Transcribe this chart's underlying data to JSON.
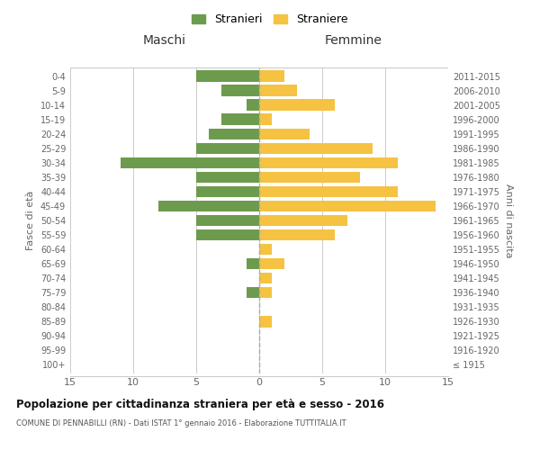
{
  "age_groups": [
    "100+",
    "95-99",
    "90-94",
    "85-89",
    "80-84",
    "75-79",
    "70-74",
    "65-69",
    "60-64",
    "55-59",
    "50-54",
    "45-49",
    "40-44",
    "35-39",
    "30-34",
    "25-29",
    "20-24",
    "15-19",
    "10-14",
    "5-9",
    "0-4"
  ],
  "birth_years": [
    "≤ 1915",
    "1916-1920",
    "1921-1925",
    "1926-1930",
    "1931-1935",
    "1936-1940",
    "1941-1945",
    "1946-1950",
    "1951-1955",
    "1956-1960",
    "1961-1965",
    "1966-1970",
    "1971-1975",
    "1976-1980",
    "1981-1985",
    "1986-1990",
    "1991-1995",
    "1996-2000",
    "2001-2005",
    "2006-2010",
    "2011-2015"
  ],
  "males": [
    0,
    0,
    0,
    0,
    0,
    1,
    0,
    1,
    0,
    5,
    5,
    8,
    5,
    5,
    11,
    5,
    4,
    3,
    1,
    3,
    5
  ],
  "females": [
    0,
    0,
    0,
    1,
    0,
    1,
    1,
    2,
    1,
    6,
    7,
    14,
    11,
    8,
    11,
    9,
    4,
    1,
    6,
    3,
    2
  ],
  "male_color": "#6d9b4e",
  "female_color": "#f5c242",
  "bg_color": "#ffffff",
  "grid_color": "#cccccc",
  "title": "Popolazione per cittadinanza straniera per età e sesso - 2016",
  "subtitle": "COMUNE DI PENNABILLI (RN) - Dati ISTAT 1° gennaio 2016 - Elaborazione TUTTITALIA.IT",
  "xlabel_left": "Maschi",
  "xlabel_right": "Femmine",
  "ylabel_left": "Fasce di età",
  "ylabel_right": "Anni di nascita",
  "xlim": 15,
  "legend_stranieri": "Stranieri",
  "legend_straniere": "Straniere"
}
